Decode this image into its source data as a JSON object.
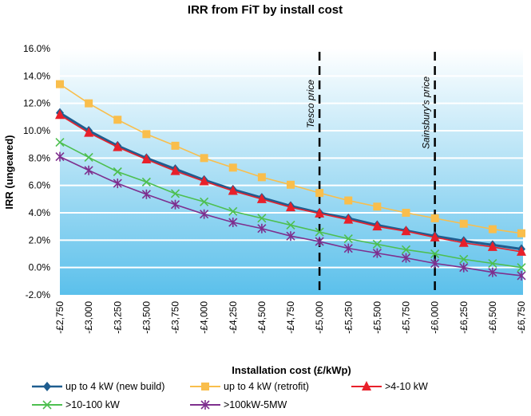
{
  "chart_data": {
    "type": "line",
    "title": "IRR from FiT by install cost",
    "xlabel": "Installation cost (£/kWp)",
    "ylabel": "IRR (ungeared)",
    "ylim": [
      -2.0,
      16.0
    ],
    "ytick_step": 2.0,
    "ytick_labels": [
      "-2.0%",
      "0.0%",
      "2.0%",
      "4.0%",
      "6.0%",
      "8.0%",
      "10.0%",
      "12.0%",
      "14.0%",
      "16.0%"
    ],
    "grid": "horizontal",
    "background": {
      "top": "#ffffff",
      "bottom": "#5bc0eb"
    },
    "categories": [
      "-£2,750",
      "-£3,000",
      "-£3,250",
      "-£3,500",
      "-£3,750",
      "-£4,000",
      "-£4,250",
      "-£4,500",
      "-£4,750",
      "-£5,000",
      "-£5,250",
      "-£5,500",
      "-£5,750",
      "-£6,000",
      "-£6,250",
      "-£6,500",
      "-£6,750"
    ],
    "series": [
      {
        "name": "up to 4 kW (new build)",
        "color": "#1f5d8f",
        "marker": "diamond",
        "values": [
          11.3,
          10.0,
          8.9,
          8.0,
          7.2,
          6.4,
          5.7,
          5.1,
          4.5,
          4.0,
          3.6,
          3.1,
          2.7,
          2.3,
          1.95,
          1.65,
          1.35
        ]
      },
      {
        "name": "up to 4 kW (retrofit)",
        "color": "#f9be4c",
        "marker": "square",
        "values": [
          13.4,
          12.0,
          10.8,
          9.75,
          8.9,
          8.0,
          7.3,
          6.6,
          6.05,
          5.45,
          4.9,
          4.45,
          4.0,
          3.6,
          3.2,
          2.8,
          2.5
        ]
      },
      {
        "name": ">4-10 kW",
        "color": "#e8202a",
        "marker": "triangle",
        "values": [
          11.15,
          9.85,
          8.8,
          7.9,
          7.05,
          6.3,
          5.6,
          5.0,
          4.4,
          3.95,
          3.5,
          3.0,
          2.65,
          2.2,
          1.8,
          1.5,
          1.15
        ]
      },
      {
        "name": ">10-100 kW",
        "color": "#4dbf4f",
        "marker": "x",
        "values": [
          9.15,
          8.05,
          7.0,
          6.25,
          5.4,
          4.8,
          4.1,
          3.6,
          3.1,
          2.6,
          2.1,
          1.7,
          1.3,
          1.0,
          0.6,
          0.3,
          0.0
        ]
      },
      {
        "name": ">100kW-5MW",
        "color": "#7e2f8e",
        "marker": "star",
        "values": [
          8.1,
          7.1,
          6.15,
          5.35,
          4.6,
          3.9,
          3.3,
          2.85,
          2.3,
          1.9,
          1.4,
          1.05,
          0.7,
          0.3,
          0.0,
          -0.35,
          -0.6
        ]
      }
    ],
    "annotations": [
      {
        "label": "Tesco price",
        "at_category": "-£5,000",
        "style": "dashed vertical line"
      },
      {
        "label": "Sainsbury's price",
        "at_category": "-£6,000",
        "style": "dashed vertical line"
      }
    ],
    "legend": {
      "placement": "bottom",
      "columns": 3
    }
  }
}
